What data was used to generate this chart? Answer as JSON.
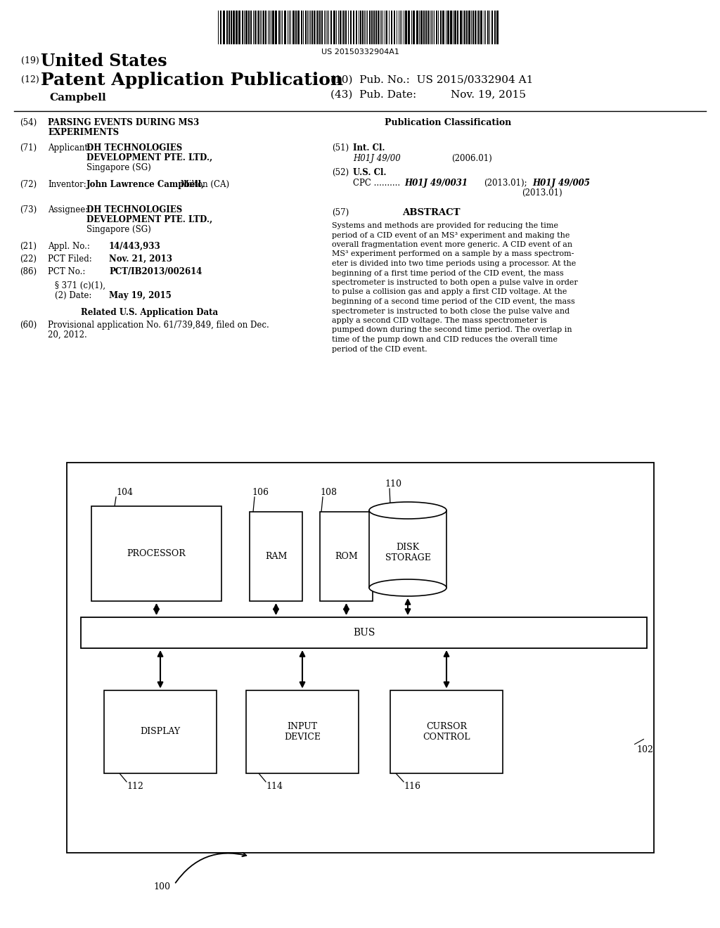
{
  "bg_color": "#ffffff",
  "barcode_text": "US 20150332904A1",
  "header_19_text": "United States",
  "header_12_text": "Patent Application Publication",
  "header_pub_no": "(10)  Pub. No.:  US 2015/0332904 A1",
  "header_inventor": "Campbell",
  "header_pub_date": "(43)  Pub. Date:          Nov. 19, 2015",
  "diagram_label_100": "100",
  "diagram_label_102": "102",
  "diagram_label_104": "104",
  "diagram_label_106": "106",
  "diagram_label_108": "108",
  "diagram_label_110": "110",
  "diagram_label_112": "112",
  "diagram_label_114": "114",
  "diagram_label_116": "116",
  "processor_label": "PROCESSOR",
  "ram_label": "RAM",
  "rom_label": "ROM",
  "disk_label": "DISK\nSTORAGE",
  "bus_label": "BUS",
  "display_label": "DISPLAY",
  "input_label": "INPUT\nDEVICE",
  "cursor_label": "CURSOR\nCONTROL",
  "abstract_text_lines": [
    "Systems and methods are provided for reducing the time",
    "period of a CID event of an MS³ experiment and making the",
    "overall fragmentation event more generic. A CID event of an",
    "MS³ experiment performed on a sample by a mass spectrom-",
    "eter is divided into two time periods using a processor. At the",
    "beginning of a first time period of the CID event, the mass",
    "spectrometer is instructed to both open a pulse valve in order",
    "to pulse a collision gas and apply a first CID voltage. At the",
    "beginning of a second time period of the CID event, the mass",
    "spectrometer is instructed to both close the pulse valve and",
    "apply a second CID voltage. The mass spectrometer is",
    "pumped down during the second time period. The overlap in",
    "time of the pump down and CID reduces the overall time",
    "period of the CID event."
  ]
}
